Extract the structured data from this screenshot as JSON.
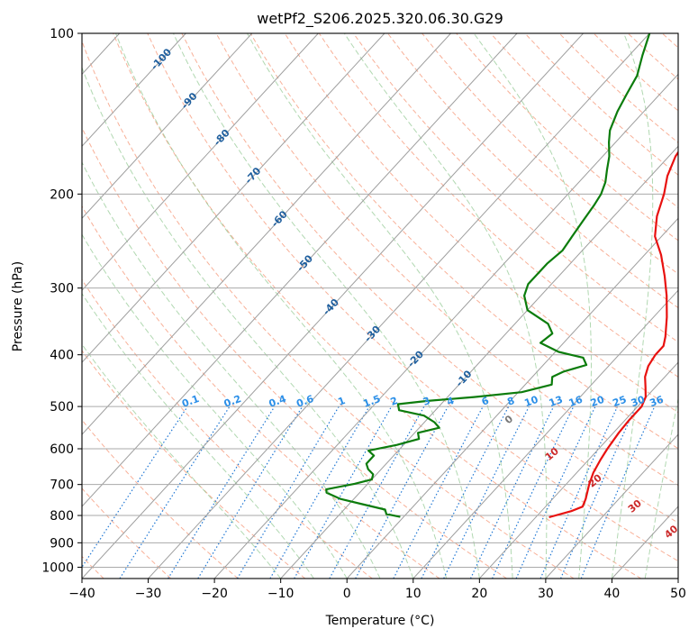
{
  "chart_data": {
    "type": "line",
    "title": "wetPf2_S206.2025.320.06.30.G29",
    "xlabel": "Temperature (°C)",
    "ylabel": "Pressure (hPa)",
    "xlim": [
      -40,
      50
    ],
    "ylim": [
      1050,
      100
    ],
    "y_scale": "log",
    "x_ticks": [
      "−40",
      "−30",
      "−20",
      "−10",
      "0",
      "10",
      "20",
      "30",
      "40",
      "50"
    ],
    "y_ticks": [
      "100",
      "200",
      "300",
      "400",
      "500",
      "600",
      "700",
      "800",
      "900",
      "1000"
    ],
    "grid": true,
    "series": [
      {
        "color": "#e8110f",
        "x_unit": "temperature (C)",
        "points": [
          [
            806,
            22.0
          ],
          [
            785,
            24.5
          ],
          [
            770,
            25.6
          ],
          [
            745,
            25.0
          ],
          [
            700,
            23.5
          ],
          [
            665,
            22.5
          ],
          [
            630,
            21.8
          ],
          [
            600,
            21.3
          ],
          [
            560,
            20.8
          ],
          [
            530,
            20.6
          ],
          [
            500,
            20.6
          ],
          [
            480,
            19.9
          ],
          [
            460,
            18.5
          ],
          [
            440,
            17.0
          ],
          [
            420,
            16.0
          ],
          [
            400,
            15.5
          ],
          [
            385,
            15.5
          ],
          [
            370,
            14.5
          ],
          [
            340,
            12.0
          ],
          [
            310,
            9.0
          ],
          [
            285,
            6.0
          ],
          [
            260,
            2.5
          ],
          [
            240,
            -1.0
          ],
          [
            220,
            -3.5
          ],
          [
            200,
            -5.5
          ],
          [
            185,
            -7.5
          ],
          [
            170,
            -9.0
          ],
          [
            160,
            -9.5
          ],
          [
            150,
            -10.0
          ],
          [
            140,
            -10.5
          ],
          [
            130,
            -11.0
          ],
          [
            125,
            -12.0
          ],
          [
            118,
            -14.0
          ],
          [
            110,
            -16.0
          ],
          [
            105,
            -17.5
          ],
          [
            100,
            -19.0
          ]
        ]
      },
      {
        "color": "#0c7c0c",
        "x_unit": "dewpoint (C)",
        "points": [
          [
            805,
            -0.5
          ],
          [
            795,
            -3.0
          ],
          [
            780,
            -3.8
          ],
          [
            762,
            -8.0
          ],
          [
            745,
            -12.0
          ],
          [
            725,
            -15.0
          ],
          [
            715,
            -15.5
          ],
          [
            698,
            -12.0
          ],
          [
            685,
            -10.0
          ],
          [
            670,
            -10.5
          ],
          [
            655,
            -12.0
          ],
          [
            640,
            -13.0
          ],
          [
            618,
            -13.0
          ],
          [
            605,
            -14.5
          ],
          [
            590,
            -11.0
          ],
          [
            575,
            -8.5
          ],
          [
            560,
            -9.5
          ],
          [
            548,
            -7.0
          ],
          [
            535,
            -8.5
          ],
          [
            520,
            -11.0
          ],
          [
            508,
            -15.5
          ],
          [
            495,
            -16.5
          ],
          [
            488,
            -12.5
          ],
          [
            480,
            -6.0
          ],
          [
            470,
            0.5
          ],
          [
            455,
            4.0
          ],
          [
            440,
            3.0
          ],
          [
            430,
            4.0
          ],
          [
            418,
            6.5
          ],
          [
            405,
            5.0
          ],
          [
            395,
            0.5
          ],
          [
            380,
            -3.5
          ],
          [
            365,
            -3.0
          ],
          [
            350,
            -5.0
          ],
          [
            330,
            -10.0
          ],
          [
            310,
            -12.5
          ],
          [
            295,
            -13.5
          ],
          [
            270,
            -13.5
          ],
          [
            255,
            -13.0
          ],
          [
            240,
            -13.5
          ],
          [
            225,
            -14.0
          ],
          [
            210,
            -14.5
          ],
          [
            200,
            -15.0
          ],
          [
            190,
            -16.0
          ],
          [
            180,
            -17.5
          ],
          [
            170,
            -19.0
          ],
          [
            160,
            -21.0
          ],
          [
            152,
            -22.5
          ],
          [
            140,
            -24.0
          ],
          [
            130,
            -25.0
          ],
          [
            120,
            -26.0
          ],
          [
            110,
            -28.0
          ],
          [
            100,
            -30.0
          ]
        ]
      }
    ],
    "annotations": {
      "skewed_temperature_labels": [
        "-100",
        "-90",
        "-80",
        "-70",
        "-60",
        "-50",
        "-40",
        "-30",
        "-20",
        "-10"
      ],
      "mixing_ratio_labels": [
        "0.1",
        "0.2",
        "0.4",
        "0.6",
        "1",
        "1.5",
        "2",
        "3",
        "4",
        "6",
        "8",
        "10",
        "13",
        "16",
        "20",
        "25",
        "30",
        "36"
      ],
      "moist_adiabat_labels": [
        "0",
        "10",
        "20",
        "30",
        "40"
      ]
    },
    "colors": {
      "isotherm": "#9e9e9e",
      "isobar": "#aaaaaa",
      "dry_adiabat": "#f7a286",
      "moist_adiabat": "#90c890",
      "mixing_ratio": "#1f77d4",
      "isotherm_label": "#1f5f9e",
      "mixing_ratio_label": "#2b8fe8",
      "moist_label_zero": "#777777",
      "moist_label": "#cc2a2a"
    }
  }
}
